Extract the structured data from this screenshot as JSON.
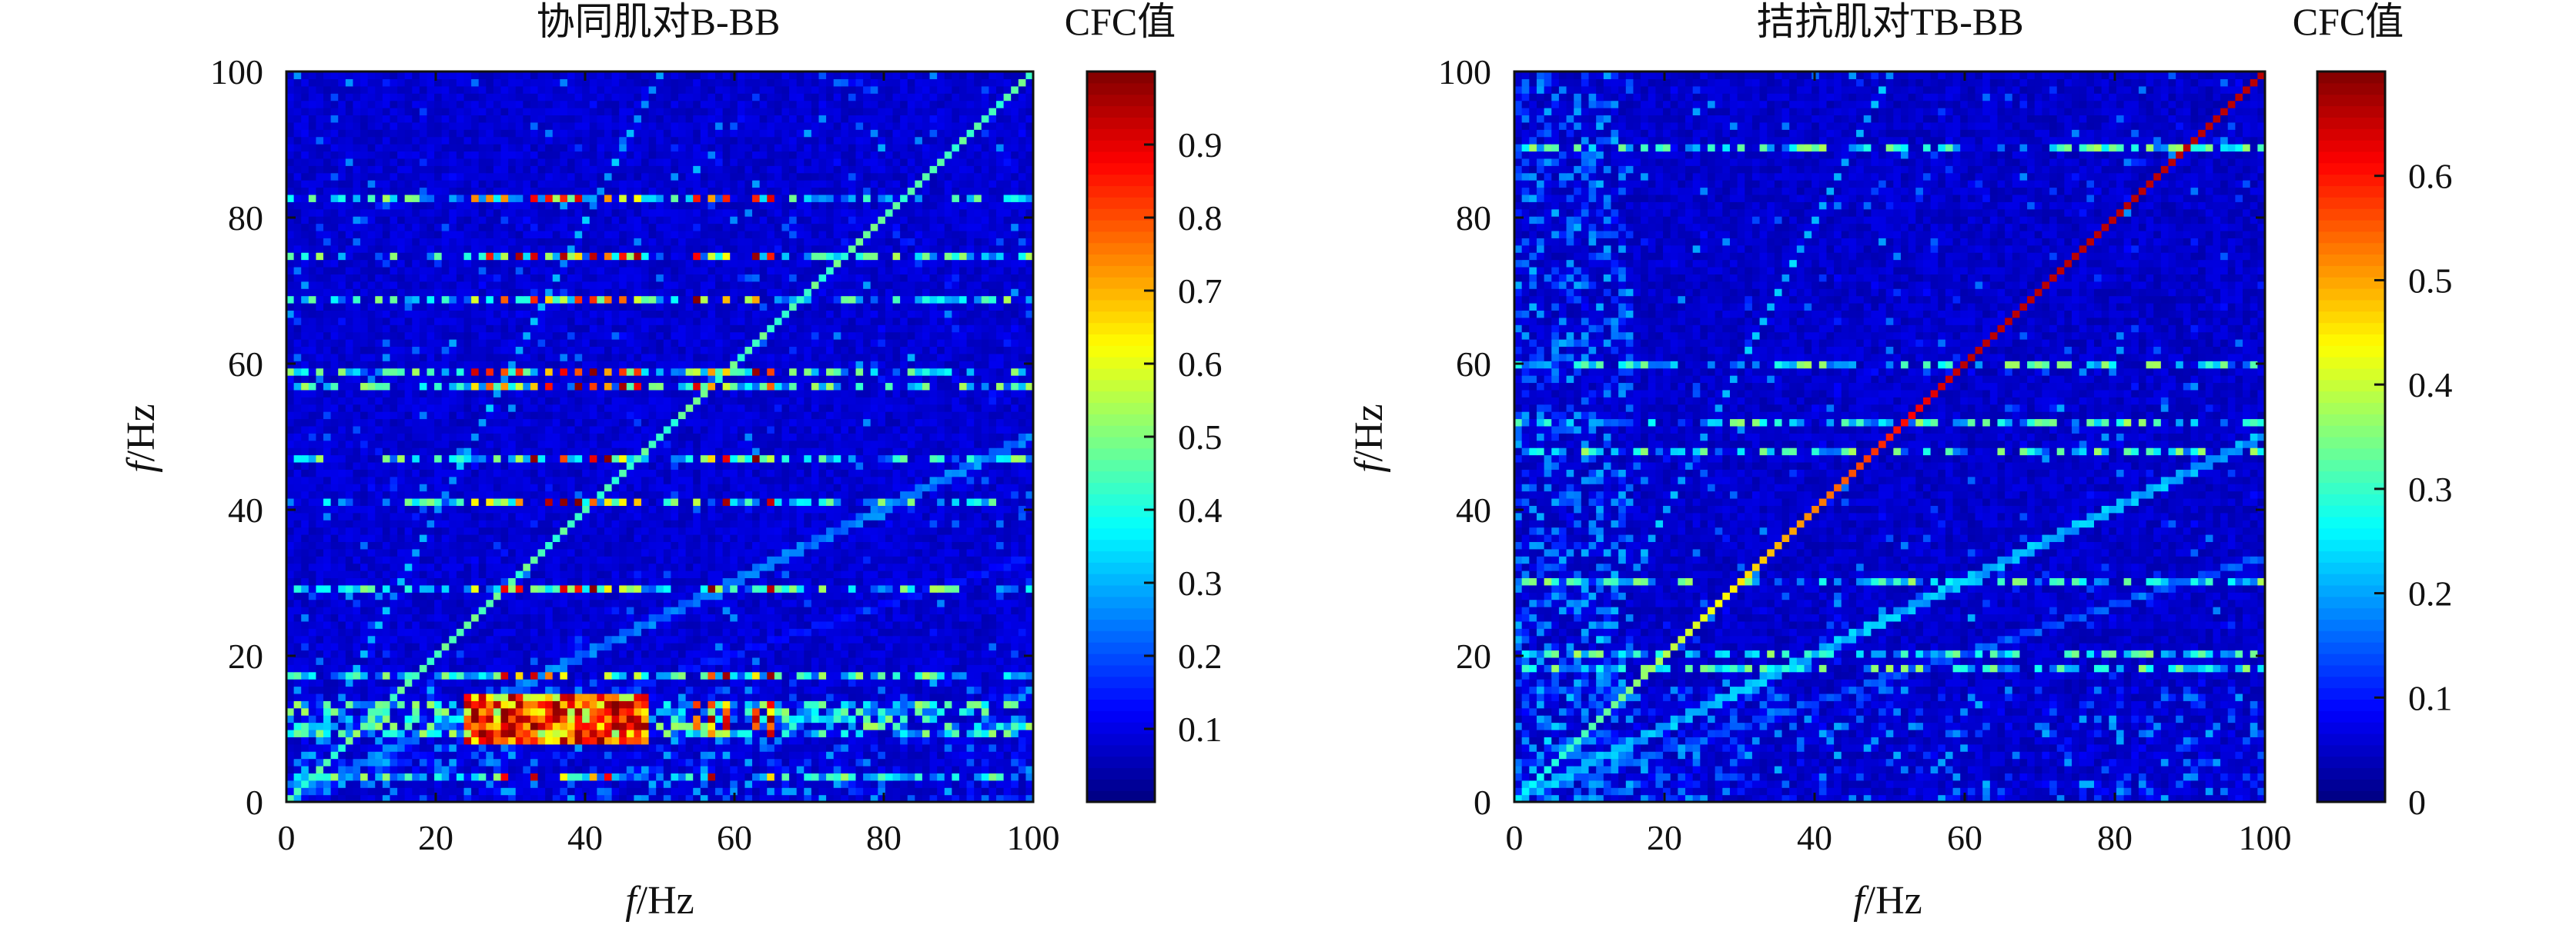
{
  "chart_data": [
    {
      "type": "heatmap",
      "title": "协同肌对B-BB",
      "xlabel_italic": "f",
      "xlabel_rest": "/Hz",
      "ylabel_italic": "f",
      "ylabel_rest": "/Hz",
      "xlim": [
        0,
        100
      ],
      "ylim": [
        0,
        100
      ],
      "xticks": [
        0,
        20,
        40,
        60,
        80,
        100
      ],
      "yticks": [
        0,
        20,
        40,
        60,
        80,
        100
      ],
      "colorbar": {
        "title": "CFC值",
        "range": [
          0,
          1.0
        ],
        "ticks": [
          0.1,
          0.2,
          0.3,
          0.4,
          0.5,
          0.6,
          0.7,
          0.8,
          0.9
        ],
        "colormap": "jet"
      },
      "grid_resolution_hz": 1,
      "background_value": 0.05,
      "diagonal": {
        "slope": 1,
        "value": 0.45
      },
      "harmonic_lines": [
        {
          "slope": 2,
          "value": 0.3
        },
        {
          "slope": 0.5,
          "value": 0.25
        },
        {
          "slope": 0.333,
          "value": 0.15
        }
      ],
      "hot_rows_hz": [
        3,
        9,
        10,
        11,
        12,
        13,
        17,
        29,
        41,
        47,
        57,
        59,
        69,
        75,
        83
      ],
      "hot_cols_hz": [
        25,
        27,
        29,
        31,
        33,
        35,
        37,
        39,
        41,
        43,
        45,
        47,
        55,
        57,
        59,
        63,
        65
      ],
      "hot_block": {
        "x": [
          24,
          48
        ],
        "y": [
          8,
          14
        ],
        "value": 0.85
      }
    },
    {
      "type": "heatmap",
      "title": "拮抗肌对TB-BB",
      "xlabel_italic": "f",
      "xlabel_rest": "/Hz",
      "ylabel_italic": "f",
      "ylabel_rest": "/Hz",
      "xlim": [
        0,
        100
      ],
      "ylim": [
        0,
        100
      ],
      "xticks": [
        0,
        20,
        40,
        60,
        80,
        100
      ],
      "yticks": [
        0,
        20,
        40,
        60,
        80,
        100
      ],
      "colorbar": {
        "title": "CFC值",
        "range": [
          0,
          0.7
        ],
        "ticks": [
          0,
          0.1,
          0.2,
          0.3,
          0.4,
          0.5,
          0.6
        ],
        "colormap": "jet"
      },
      "grid_resolution_hz": 1,
      "background_value": 0.03,
      "diagonal": {
        "slope": 1,
        "value_range": [
          0.25,
          0.66
        ]
      },
      "harmonic_lines": [
        {
          "slope": 2,
          "value": 0.22
        },
        {
          "slope": 0.5,
          "value": 0.22
        },
        {
          "slope": 0.333,
          "value": 0.15
        }
      ],
      "hot_rows_hz": [
        18,
        20,
        30,
        48,
        52,
        60,
        90
      ],
      "left_band_cols_hz": [
        0,
        1,
        2,
        3,
        4,
        5,
        6,
        7,
        8,
        9,
        10,
        11,
        12,
        13,
        14,
        15
      ]
    }
  ]
}
